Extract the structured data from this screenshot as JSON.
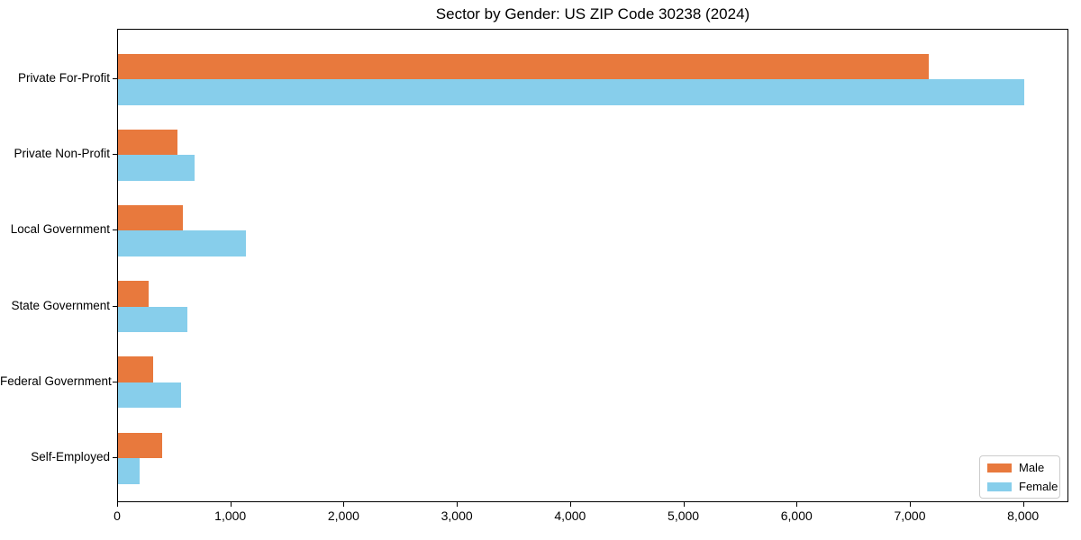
{
  "chart_data": {
    "type": "bar",
    "orientation": "horizontal",
    "title": "Sector by Gender: US ZIP Code 30238 (2024)",
    "categories": [
      "Private For-Profit",
      "Private Non-Profit",
      "Local Government",
      "State Government",
      "Federal Government",
      "Self-Employed"
    ],
    "series": [
      {
        "name": "Male",
        "color": "#e8793d",
        "values": [
          7160,
          525,
          570,
          272,
          310,
          390
        ]
      },
      {
        "name": "Female",
        "color": "#87ceeb",
        "values": [
          8000,
          675,
          1130,
          615,
          555,
          192
        ]
      }
    ],
    "xlabel": "",
    "ylabel": "",
    "xlim": [
      0,
      8400
    ],
    "xticks": [
      0,
      1000,
      2000,
      3000,
      4000,
      5000,
      6000,
      7000,
      8000
    ],
    "tick_label_format": "thousands-comma",
    "legend_position": "lower right",
    "grid": false,
    "background_color": "#ffffff",
    "spine_color": "#000000"
  }
}
